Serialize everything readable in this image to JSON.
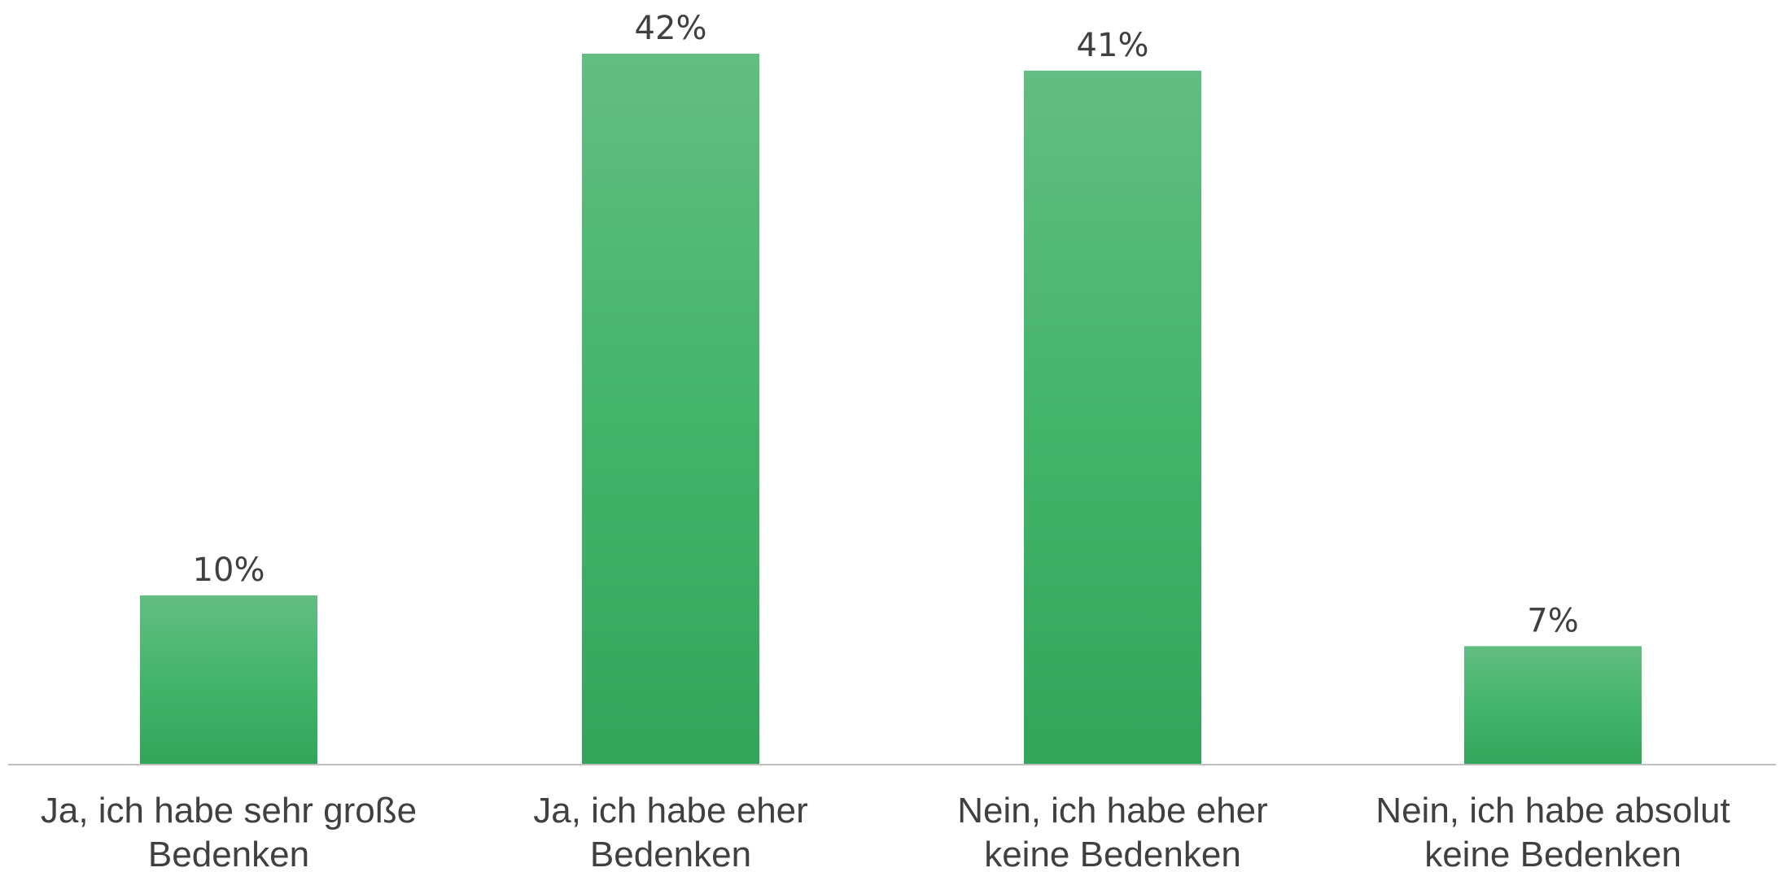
{
  "chart_data": {
    "type": "bar",
    "title": "",
    "xlabel": "",
    "ylabel": "",
    "categories": [
      [
        "Ja, ich habe sehr große",
        "Bedenken"
      ],
      [
        "Ja, ich habe eher",
        "Bedenken"
      ],
      [
        "Nein, ich habe eher",
        "keine Bedenken"
      ],
      [
        "Nein, ich habe absolut",
        "keine Bedenken"
      ]
    ],
    "values": [
      10,
      42,
      41,
      7
    ],
    "value_labels": [
      "10%",
      "42%",
      "41%",
      "7%"
    ],
    "ylim": [
      0,
      42
    ],
    "grid": false,
    "legend": "none",
    "bar_color_top": "#62be82",
    "bar_color_bottom": "#33a55b",
    "axis_color": "#bfbfbf",
    "text_color": "#404040"
  }
}
